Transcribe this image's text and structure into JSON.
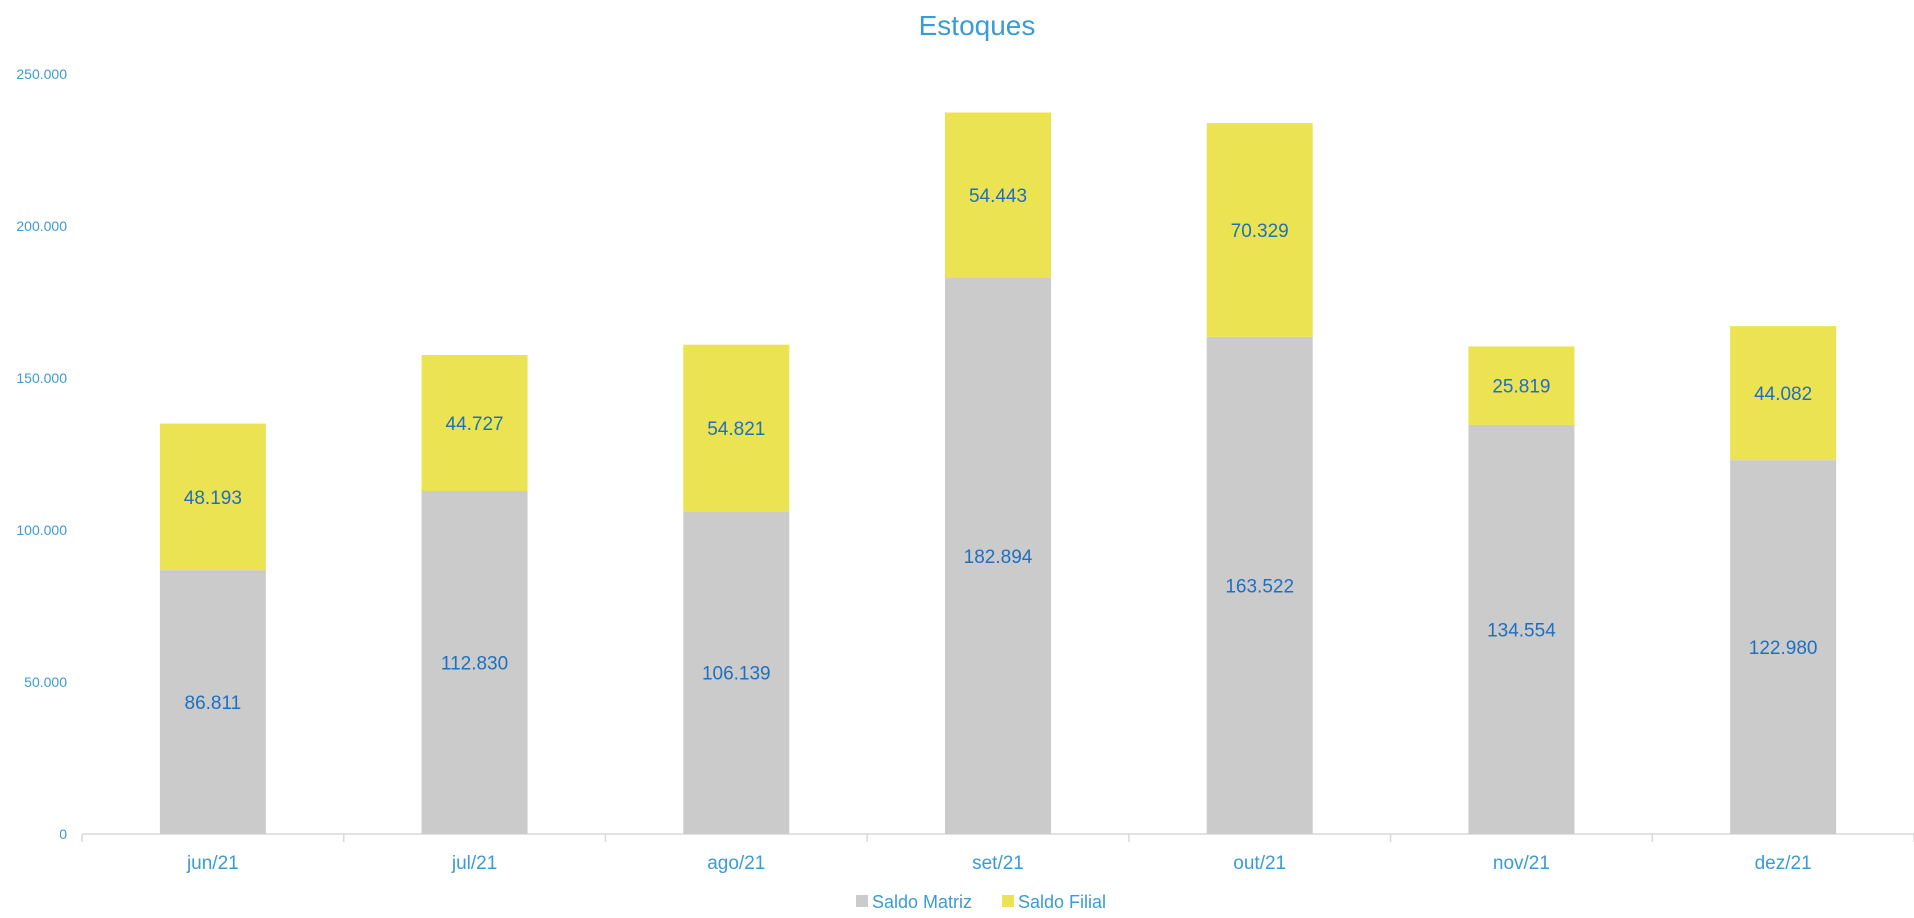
{
  "chart_data": {
    "type": "bar",
    "stacked": true,
    "title": "Estoques",
    "categories": [
      "jun/21",
      "jul/21",
      "ago/21",
      "set/21",
      "out/21",
      "nov/21",
      "dez/21"
    ],
    "series": [
      {
        "name": "Saldo Matriz",
        "color": "#cbcbcb",
        "values": [
          86811,
          112830,
          106139,
          182894,
          163522,
          134554,
          122980
        ],
        "labels": [
          "86.811",
          "112.830",
          "106.139",
          "182.894",
          "163.522",
          "134.554",
          "122.980"
        ]
      },
      {
        "name": "Saldo Filial",
        "color": "#ece352",
        "values": [
          48193,
          44727,
          54821,
          54443,
          70329,
          25819,
          44082
        ],
        "labels": [
          "48.193",
          "44.727",
          "54.821",
          "54.443",
          "70.329",
          "25.819",
          "44.082"
        ]
      }
    ],
    "ylim": [
      0,
      250000
    ],
    "yticks": [
      0,
      50000,
      100000,
      150000,
      200000,
      250000
    ],
    "ytick_labels": [
      "0",
      "50.000",
      "100.000",
      "150.000",
      "200.000",
      "250.000"
    ],
    "grid": false,
    "legend_position": "bottom"
  }
}
